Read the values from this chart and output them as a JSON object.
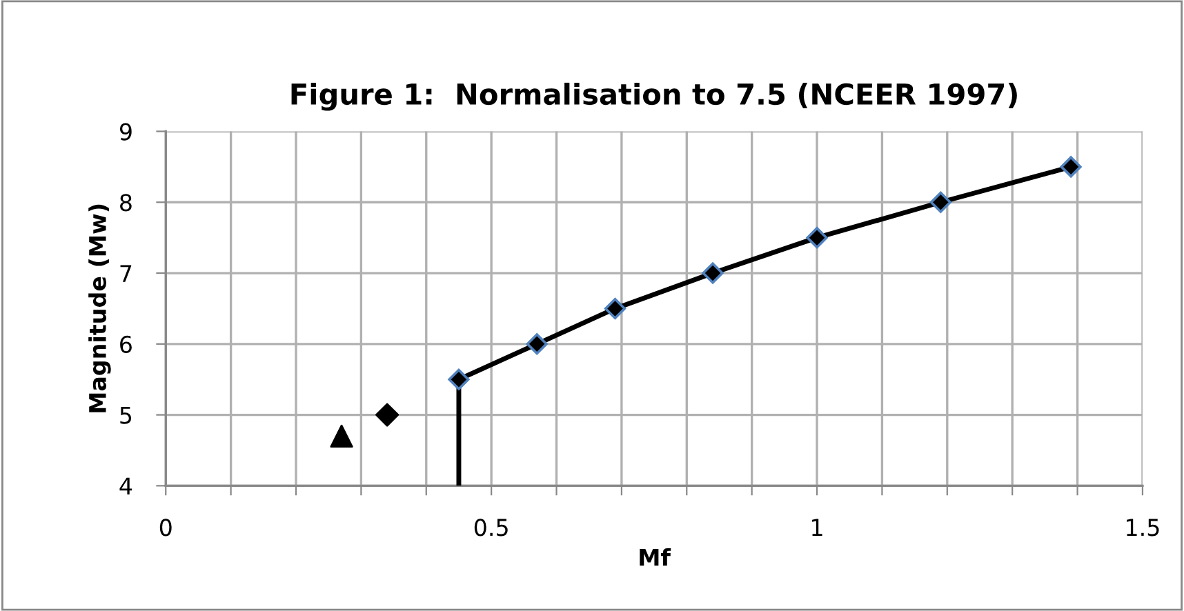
{
  "chart_data": {
    "type": "line",
    "title": "Figure 1:  Normalisation to 7.5 (NCEER 1997)",
    "xlabel": "Mf",
    "ylabel": "Magnitude (Mw)",
    "series": [
      {
        "color": "#000000",
        "x": [
          0.45,
          0.45
        ],
        "values": [
          4,
          5.5
        ]
      },
      {
        "color": "#000000",
        "marker": "diamond",
        "x": [
          0.45,
          0.57,
          0.69,
          0.84,
          1.0,
          1.19,
          1.39
        ],
        "values": [
          5.5,
          6,
          6.5,
          7,
          7.5,
          8,
          8.5
        ]
      },
      {
        "type": "scatter",
        "color": "#000000",
        "marker": "diamond",
        "x": [
          0.34
        ],
        "values": [
          5.0
        ]
      },
      {
        "type": "scatter",
        "color": "#000000",
        "marker": "triangle",
        "x": [
          0.27
        ],
        "values": [
          4.7
        ]
      }
    ],
    "xlim": [
      0,
      1.5
    ],
    "ylim": [
      4,
      9
    ],
    "xticks": [
      0,
      {
        "value": 0.1,
        "label": null
      },
      {
        "value": 0.2,
        "label": null
      },
      {
        "value": 0.3,
        "label": null
      },
      {
        "value": 0.4,
        "label": null
      },
      0.5,
      {
        "value": 0.6,
        "label": null
      },
      {
        "value": 0.7,
        "label": null
      },
      {
        "value": 0.8,
        "label": null
      },
      {
        "value": 0.9,
        "label": null
      },
      1,
      {
        "value": 1.1,
        "label": null
      },
      {
        "value": 1.2,
        "label": null
      },
      {
        "value": 1.3,
        "label": null
      },
      {
        "value": 1.4,
        "label": null
      },
      1.5
    ],
    "yticks": [
      4,
      5,
      6,
      7,
      8,
      9
    ],
    "grid": true,
    "legend": false
  }
}
